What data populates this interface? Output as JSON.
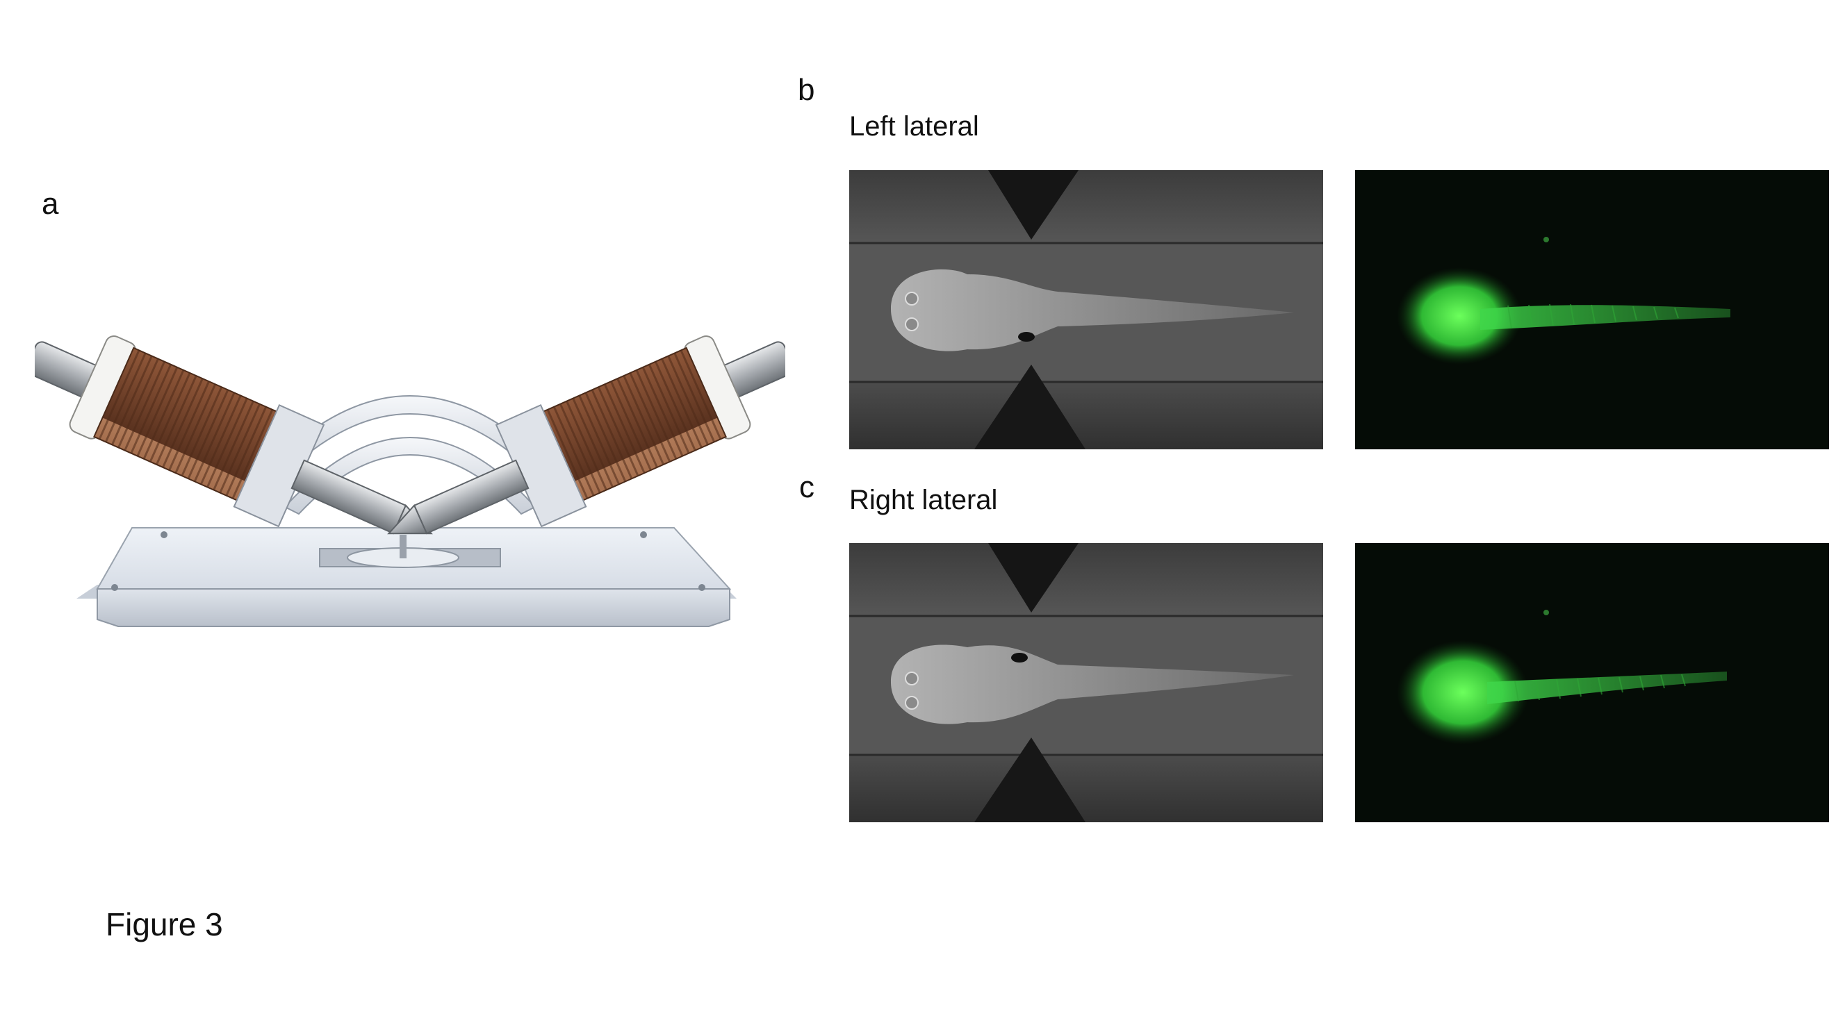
{
  "figure": {
    "caption": "Figure 3",
    "panel_a": {
      "label": "a"
    },
    "panel_b": {
      "label": "b",
      "title": "Left lateral"
    },
    "panel_c": {
      "label": "c",
      "title": "Right lateral"
    },
    "colors": {
      "copper": "#8a5336",
      "steel": "#c8ccd2",
      "fluorescence": "#3fd64a",
      "dark_field": "#050c06",
      "bright_field": "#4a4a4a"
    }
  }
}
